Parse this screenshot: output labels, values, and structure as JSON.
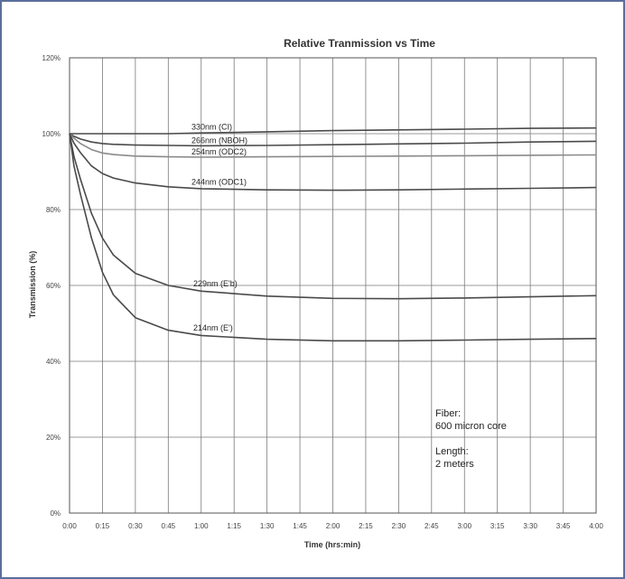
{
  "chart_data": {
    "type": "line",
    "title": "Relative Tranmission vs Time",
    "xlabel": "Time (hrs:min)",
    "ylabel": "Transmission (%)",
    "x_ticks": [
      "0:00",
      "0:15",
      "0:30",
      "0:45",
      "1:00",
      "1:15",
      "1:30",
      "1:45",
      "2:00",
      "2:15",
      "2:30",
      "2:45",
      "3:00",
      "3:15",
      "3:30",
      "3:45",
      "4:00"
    ],
    "y_ticks": [
      "0%",
      "20%",
      "40%",
      "60%",
      "80%",
      "100%",
      "120%"
    ],
    "ylim": [
      0,
      120
    ],
    "xlim": [
      "0:00",
      "4:00"
    ],
    "grid": true,
    "x": [
      "0:00",
      "0:02",
      "0:05",
      "0:10",
      "0:15",
      "0:20",
      "0:30",
      "0:45",
      "1:00",
      "1:30",
      "2:00",
      "2:30",
      "3:00",
      "3:30",
      "4:00"
    ],
    "series": [
      {
        "name": "330nm (CI)",
        "values": [
          100,
          100,
          100,
          100,
          100,
          100,
          100,
          100,
          100.2,
          100.5,
          100.8,
          101,
          101.2,
          101.4,
          101.5
        ]
      },
      {
        "name": "266nm (NBOH)",
        "values": [
          100,
          99.3,
          98.6,
          97.8,
          97.4,
          97.2,
          97,
          96.9,
          96.8,
          96.9,
          97.1,
          97.3,
          97.5,
          97.8,
          98
        ]
      },
      {
        "name": "254nm (ODC2)",
        "values": [
          100,
          98.8,
          97.4,
          95.8,
          94.9,
          94.5,
          94.1,
          93.9,
          93.8,
          93.9,
          94,
          94.1,
          94.2,
          94.3,
          94.4
        ]
      },
      {
        "name": "244nm (ODC1)",
        "values": [
          100,
          97.5,
          95,
          91.5,
          89.5,
          88.3,
          87,
          86,
          85.5,
          85.2,
          85.1,
          85.2,
          85.4,
          85.6,
          85.8
        ]
      },
      {
        "name": "229nm (E'b)",
        "values": [
          100,
          94,
          88,
          79,
          72.5,
          68,
          63.2,
          60,
          58.5,
          57.2,
          56.6,
          56.5,
          56.7,
          57,
          57.3
        ]
      },
      {
        "name": "214nm (E')",
        "values": [
          100,
          91.5,
          84,
          72.5,
          63.5,
          57.5,
          51.5,
          48.2,
          46.8,
          45.8,
          45.4,
          45.4,
          45.6,
          45.8,
          46
        ]
      }
    ],
    "colors": [
      "#4a4a4a",
      "#4a4a4a",
      "#8a8a8a",
      "#4a4a4a",
      "#4a4a4a",
      "#4a4a4a"
    ],
    "annotation_lines": [
      "Fiber:",
      "600 micron core",
      "",
      "Length:",
      "2 meters"
    ]
  }
}
